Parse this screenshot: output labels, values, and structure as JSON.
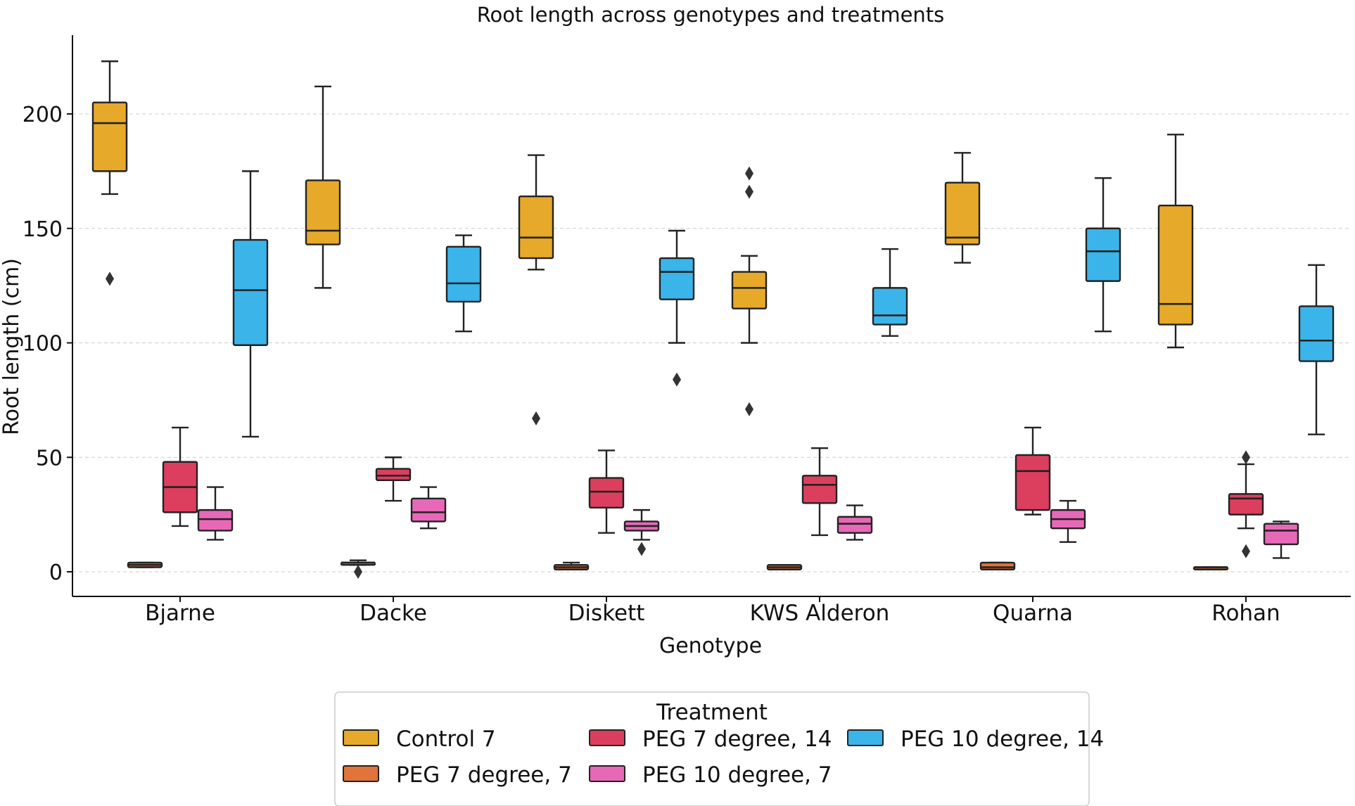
{
  "chart_data": {
    "type": "box",
    "title": "Root length across genotypes and treatments",
    "xlabel": "Genotype",
    "ylabel": "Root length (cm)",
    "ylim": [
      -10,
      233
    ],
    "yticks": [
      0,
      50,
      100,
      150,
      200
    ],
    "grid": true,
    "categories": [
      "Bjarne",
      "Dacke",
      "Diskett",
      "KWS Alderon",
      "Quarna",
      "Rohan"
    ],
    "legend": {
      "title": "Treatment",
      "placement": "bottom-center"
    },
    "series": [
      {
        "name": "Control 7",
        "color": "#E6A92A",
        "boxes": [
          {
            "whislo": 165,
            "q1": 175,
            "med": 196,
            "q3": 205,
            "whishi": 223,
            "fliers": [
              128
            ]
          },
          {
            "whislo": 124,
            "q1": 143,
            "med": 149,
            "q3": 171,
            "whishi": 212,
            "fliers": []
          },
          {
            "whislo": 132,
            "q1": 137,
            "med": 146,
            "q3": 164,
            "whishi": 182,
            "fliers": [
              67
            ]
          },
          {
            "whislo": 100,
            "q1": 115,
            "med": 124,
            "q3": 131,
            "whishi": 138,
            "fliers": [
              71,
              166,
              174
            ]
          },
          {
            "whislo": 135,
            "q1": 143,
            "med": 146,
            "q3": 170,
            "whishi": 183,
            "fliers": []
          },
          {
            "whislo": 98,
            "q1": 108,
            "med": 117,
            "q3": 160,
            "whishi": 191,
            "fliers": []
          }
        ]
      },
      {
        "name": "PEG 7 degree, 7",
        "color": "#E0743A",
        "boxes": [
          {
            "whislo": 2,
            "q1": 2,
            "med": 3,
            "q3": 4,
            "whishi": 4,
            "fliers": []
          },
          {
            "whislo": 3,
            "q1": 3,
            "med": 4,
            "q3": 4,
            "whishi": 5,
            "fliers": [
              0
            ]
          },
          {
            "whislo": 1,
            "q1": 1,
            "med": 2,
            "q3": 3,
            "whishi": 4,
            "fliers": []
          },
          {
            "whislo": 1,
            "q1": 1,
            "med": 2,
            "q3": 3,
            "whishi": 3,
            "fliers": []
          },
          {
            "whislo": 1,
            "q1": 1,
            "med": 2,
            "q3": 4,
            "whishi": 4,
            "fliers": []
          },
          {
            "whislo": 1,
            "q1": 1,
            "med": 2,
            "q3": 2,
            "whishi": 2,
            "fliers": []
          }
        ]
      },
      {
        "name": "PEG 7 degree, 14",
        "color": "#DC3F5E",
        "boxes": [
          {
            "whislo": 20,
            "q1": 26,
            "med": 37,
            "q3": 48,
            "whishi": 63,
            "fliers": []
          },
          {
            "whislo": 31,
            "q1": 40,
            "med": 42,
            "q3": 45,
            "whishi": 50,
            "fliers": []
          },
          {
            "whislo": 17,
            "q1": 28,
            "med": 35,
            "q3": 41,
            "whishi": 53,
            "fliers": []
          },
          {
            "whislo": 16,
            "q1": 30,
            "med": 38,
            "q3": 42,
            "whishi": 54,
            "fliers": []
          },
          {
            "whislo": 25,
            "q1": 27,
            "med": 44,
            "q3": 51,
            "whishi": 63,
            "fliers": []
          },
          {
            "whislo": 19,
            "q1": 25,
            "med": 32,
            "q3": 34,
            "whishi": 47,
            "fliers": [
              9,
              50
            ]
          }
        ]
      },
      {
        "name": "PEG 10 degree, 7",
        "color": "#E868B8",
        "boxes": [
          {
            "whislo": 14,
            "q1": 18,
            "med": 23,
            "q3": 27,
            "whishi": 37,
            "fliers": []
          },
          {
            "whislo": 19,
            "q1": 22,
            "med": 26,
            "q3": 32,
            "whishi": 37,
            "fliers": []
          },
          {
            "whislo": 14,
            "q1": 18,
            "med": 20,
            "q3": 22,
            "whishi": 27,
            "fliers": [
              10
            ]
          },
          {
            "whislo": 14,
            "q1": 17,
            "med": 21,
            "q3": 24,
            "whishi": 29,
            "fliers": []
          },
          {
            "whislo": 13,
            "q1": 19,
            "med": 23,
            "q3": 27,
            "whishi": 31,
            "fliers": []
          },
          {
            "whislo": 6,
            "q1": 12,
            "med": 18,
            "q3": 21,
            "whishi": 22,
            "fliers": []
          }
        ]
      },
      {
        "name": "PEG 10 degree, 14",
        "color": "#3BB4EA",
        "boxes": [
          {
            "whislo": 59,
            "q1": 99,
            "med": 123,
            "q3": 145,
            "whishi": 175,
            "fliers": []
          },
          {
            "whislo": 105,
            "q1": 118,
            "med": 126,
            "q3": 142,
            "whishi": 147,
            "fliers": []
          },
          {
            "whislo": 100,
            "q1": 119,
            "med": 131,
            "q3": 137,
            "whishi": 149,
            "fliers": [
              84
            ]
          },
          {
            "whislo": 103,
            "q1": 108,
            "med": 112,
            "q3": 124,
            "whishi": 141,
            "fliers": []
          },
          {
            "whislo": 105,
            "q1": 127,
            "med": 140,
            "q3": 150,
            "whishi": 172,
            "fliers": []
          },
          {
            "whislo": 60,
            "q1": 92,
            "med": 101,
            "q3": 116,
            "whishi": 134,
            "fliers": []
          }
        ]
      }
    ]
  }
}
